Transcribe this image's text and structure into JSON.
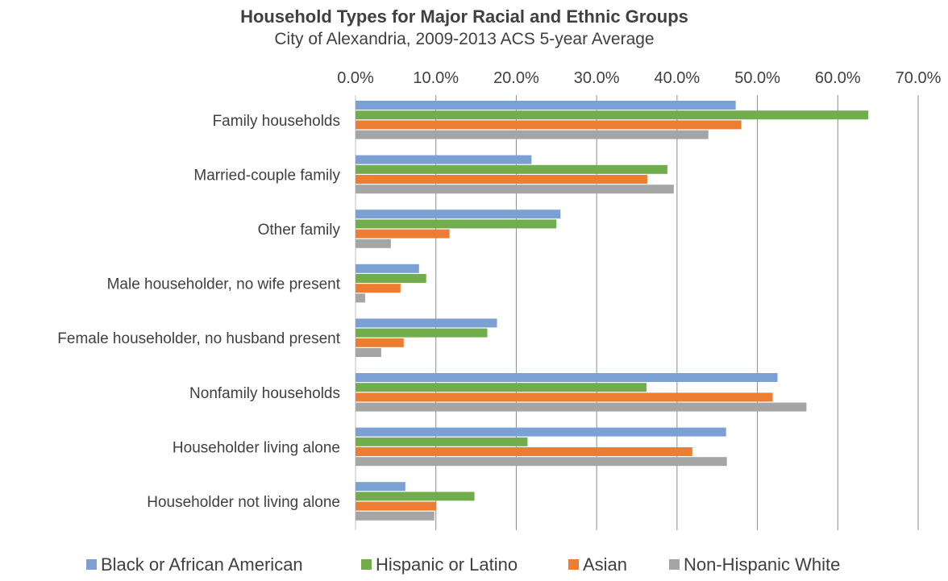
{
  "chart_data": {
    "type": "bar",
    "orientation": "horizontal",
    "title": "Household Types for Major Racial and Ethnic Groups",
    "subtitle": "City of Alexandria, 2009-2013 ACS 5-year Average",
    "xlim": [
      0,
      70
    ],
    "x_ticks": [
      "0.0%",
      "10.0%",
      "20.0%",
      "30.0%",
      "40.0%",
      "50.0%",
      "60.0%",
      "70.0%"
    ],
    "x_tick_values": [
      0,
      10,
      20,
      30,
      40,
      50,
      60,
      70
    ],
    "x_axis_position": "top",
    "grid": true,
    "legend_position": "bottom",
    "categories": [
      "Family households",
      "Married-couple family",
      "Other family",
      "Male householder, no wife present",
      "Female householder, no husband present",
      "Nonfamily households",
      "Householder living alone",
      "Householder not living alone"
    ],
    "series": [
      {
        "name": "Black or African American",
        "color": "#7ba0d4",
        "values": [
          47.3,
          21.9,
          25.5,
          7.9,
          17.6,
          52.5,
          46.1,
          6.2
        ]
      },
      {
        "name": "Hispanic or Latino",
        "color": "#72ad4d",
        "values": [
          63.8,
          38.8,
          25.0,
          8.8,
          16.4,
          36.2,
          21.4,
          14.8
        ]
      },
      {
        "name": "Asian",
        "color": "#ed7d31",
        "values": [
          48.0,
          36.3,
          11.7,
          5.6,
          6.0,
          51.9,
          41.9,
          10.0
        ]
      },
      {
        "name": "Non-Hispanic White",
        "color": "#a5a5a5",
        "values": [
          43.9,
          39.6,
          4.4,
          1.2,
          3.2,
          56.1,
          46.2,
          9.8
        ]
      }
    ]
  }
}
